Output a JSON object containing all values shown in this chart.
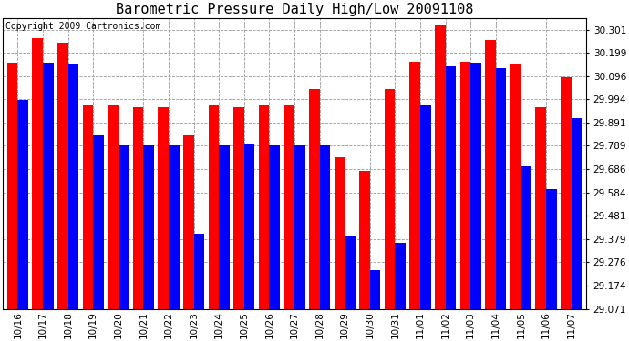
{
  "title": "Barometric Pressure Daily High/Low 20091108",
  "copyright": "Copyright 2009 Cartronics.com",
  "dates": [
    "10/16",
    "10/17",
    "10/18",
    "10/19",
    "10/20",
    "10/21",
    "10/22",
    "10/23",
    "10/24",
    "10/25",
    "10/26",
    "10/27",
    "10/28",
    "10/29",
    "10/30",
    "10/31",
    "11/01",
    "11/02",
    "11/03",
    "11/04",
    "11/05",
    "11/06",
    "11/07"
  ],
  "highs": [
    30.155,
    30.265,
    30.245,
    29.965,
    29.965,
    29.96,
    29.96,
    29.84,
    29.965,
    29.96,
    29.965,
    29.97,
    30.04,
    29.74,
    29.68,
    30.04,
    30.16,
    30.32,
    30.16,
    30.255,
    30.15,
    29.96,
    30.09
  ],
  "lows": [
    29.99,
    30.155,
    30.15,
    29.84,
    29.79,
    29.79,
    29.79,
    29.4,
    29.79,
    29.8,
    29.79,
    29.79,
    29.79,
    29.39,
    29.24,
    29.36,
    29.97,
    30.14,
    30.155,
    30.13,
    29.7,
    29.6,
    29.91
  ],
  "ylim_min": 29.071,
  "ylim_max": 30.35,
  "yticks": [
    29.071,
    29.174,
    29.276,
    29.379,
    29.481,
    29.584,
    29.686,
    29.789,
    29.891,
    29.994,
    30.096,
    30.199,
    30.301
  ],
  "bar_width": 0.42,
  "high_color": "#ff0000",
  "low_color": "#0000ff",
  "bg_color": "#ffffff",
  "plot_bg_color": "#ffffff",
  "grid_color": "#999999",
  "title_fontsize": 11,
  "tick_fontsize": 7.5,
  "copyright_fontsize": 7
}
